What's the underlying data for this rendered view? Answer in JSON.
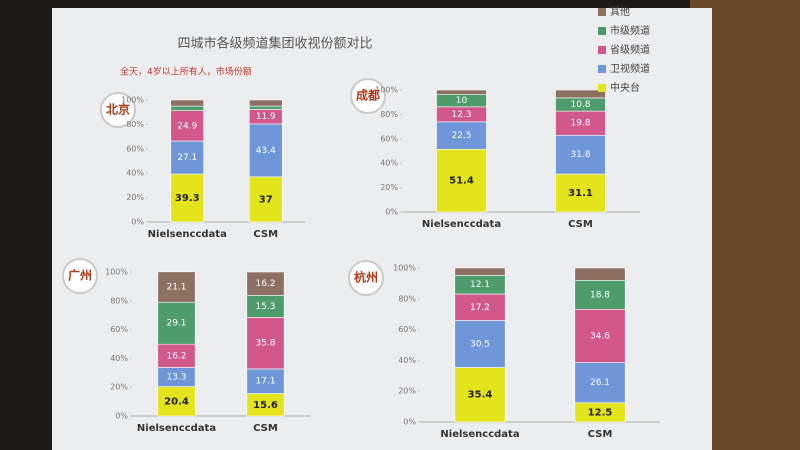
{
  "header": {
    "title": "四城市各级频道集团收视份额对比",
    "subtitle": "全天，4岁以上所有人，市场份额"
  },
  "chart_data": [
    {
      "type": "bar",
      "stacked": true,
      "title": "北京",
      "categories": [
        "Nielsenccdata",
        "CSM"
      ],
      "ylim": [
        0,
        100
      ],
      "yticks": [
        {
          "value": 0,
          "label": "0%"
        },
        {
          "value": 20,
          "label": "20%"
        },
        {
          "value": 40,
          "label": "40%"
        },
        {
          "value": 60,
          "label": "60%"
        },
        {
          "value": 80,
          "label": "80%"
        },
        {
          "value": 100,
          "label": "100%"
        }
      ],
      "series": [
        {
          "name": "中央台",
          "color": "#e4e41c",
          "values": [
            39.3,
            37
          ]
        },
        {
          "name": "卫视频道",
          "color": "#6f96d8",
          "values": [
            27.1,
            43.4
          ]
        },
        {
          "name": "省级频道",
          "color": "#d2578c",
          "values": [
            24.9,
            11.9
          ]
        },
        {
          "name": "市级频道",
          "color": "#4e9c6c",
          "values": [
            3.7,
            2.7
          ],
          "value_labels": [
            null,
            null
          ]
        },
        {
          "name": "其他",
          "color": "#8c7062",
          "values": [
            5,
            5
          ],
          "value_labels": [
            null,
            null
          ]
        }
      ]
    },
    {
      "type": "bar",
      "stacked": true,
      "title": "成都",
      "categories": [
        "Nielsenccdata",
        "CSM"
      ],
      "ylim": [
        0,
        100
      ],
      "yticks": [
        {
          "value": 0,
          "label": "0%"
        },
        {
          "value": 20,
          "label": "20%"
        },
        {
          "value": 40,
          "label": "40%"
        },
        {
          "value": 60,
          "label": "60%"
        },
        {
          "value": 80,
          "label": "80%"
        },
        {
          "value": 100,
          "label": "100%"
        }
      ],
      "series": [
        {
          "color": "#e4e41c",
          "values": [
            51.4,
            31.1
          ]
        },
        {
          "color": "#6f96d8",
          "values": [
            22.5,
            31.8
          ]
        },
        {
          "color": "#d2578c",
          "values": [
            12.3,
            19.8
          ]
        },
        {
          "color": "#4e9c6c",
          "values": [
            10,
            10.8
          ]
        },
        {
          "color": "#8c7062",
          "values": [
            3.8,
            6.5
          ],
          "value_labels": [
            null,
            null
          ]
        }
      ]
    },
    {
      "type": "bar",
      "stacked": true,
      "title": "广州",
      "categories": [
        "Nielsenccdata",
        "CSM"
      ],
      "ylim": [
        0,
        100
      ],
      "yticks": [
        {
          "value": 0,
          "label": "0%"
        },
        {
          "value": 20,
          "label": "20%"
        },
        {
          "value": 40,
          "label": "40%"
        },
        {
          "value": 60,
          "label": "60%"
        },
        {
          "value": 80,
          "label": "80%"
        },
        {
          "value": 100,
          "label": "100%"
        }
      ],
      "series": [
        {
          "color": "#e4e41c",
          "values": [
            20.4,
            15.6
          ]
        },
        {
          "color": "#6f96d8",
          "values": [
            13.3,
            17.1
          ]
        },
        {
          "color": "#d2578c",
          "values": [
            16.2,
            35.8
          ]
        },
        {
          "color": "#4e9c6c",
          "values": [
            29.1,
            15.3
          ]
        },
        {
          "color": "#8c7062",
          "values": [
            21.1,
            16.2
          ]
        }
      ]
    },
    {
      "type": "bar",
      "stacked": true,
      "title": "杭州",
      "categories": [
        "Nielsenccdata",
        "CSM"
      ],
      "ylim": [
        0,
        100
      ],
      "yticks": [
        {
          "value": 0,
          "label": "0%"
        },
        {
          "value": 20,
          "label": "20%"
        },
        {
          "value": 40,
          "label": "40%"
        },
        {
          "value": 60,
          "label": "60%"
        },
        {
          "value": 80,
          "label": "80%"
        },
        {
          "value": 100,
          "label": "100%"
        }
      ],
      "series": [
        {
          "color": "#e4e41c",
          "values": [
            35.4,
            12.5
          ]
        },
        {
          "color": "#6f96d8",
          "values": [
            30.5,
            26.1
          ]
        },
        {
          "color": "#d2578c",
          "values": [
            17.2,
            34.6
          ]
        },
        {
          "color": "#4e9c6c",
          "values": [
            12.1,
            18.8
          ]
        },
        {
          "color": "#8c7062",
          "values": [
            4.8,
            8
          ],
          "value_labels": [
            null,
            null
          ]
        }
      ]
    }
  ]
}
